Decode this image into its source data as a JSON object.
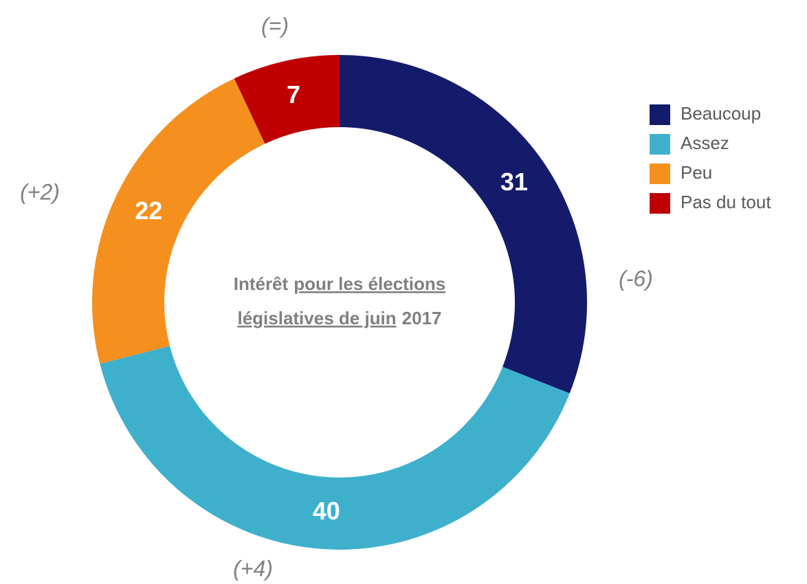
{
  "chart_data": {
    "type": "donut",
    "categories": [
      "Beaucoup",
      "Assez",
      "Peu",
      "Pas du tout"
    ],
    "values": [
      31,
      40,
      22,
      7
    ],
    "colors": [
      "#141b6b",
      "#3fb0cc",
      "#f5901e",
      "#c00000"
    ],
    "changes": [
      "(-6)",
      "(+4)",
      "(+2)",
      "(=)"
    ],
    "center_label": [
      [
        "Intérêt",
        "pour les élections"
      ],
      [
        "législatives de juin",
        "2017"
      ]
    ],
    "legend": "right"
  }
}
